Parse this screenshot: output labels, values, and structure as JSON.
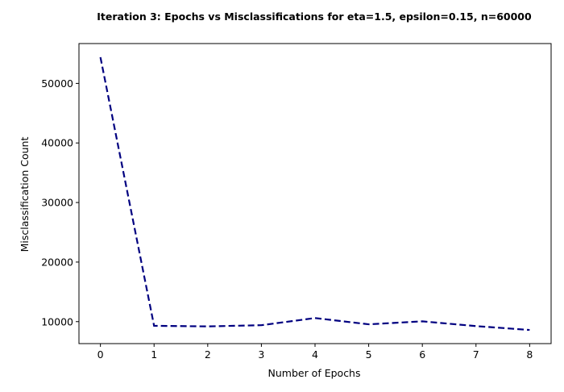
{
  "chart_data": {
    "type": "line",
    "title": "Iteration 3: Epochs vs Misclassifications for eta=1.5, epsilon=0.15, n=60000",
    "xlabel": "Number of Epochs",
    "ylabel": "Misclassification Count",
    "x": [
      0,
      1,
      2,
      3,
      4,
      5,
      6,
      7,
      8
    ],
    "series": [
      {
        "values": [
          54400,
          9300,
          9200,
          9400,
          10600,
          9550,
          10050,
          9250,
          8600
        ],
        "color": "#000080",
        "style": "dashed"
      }
    ],
    "xticks": [
      "0",
      "1",
      "2",
      "3",
      "4",
      "5",
      "6",
      "7",
      "8"
    ],
    "yticks": [
      "10000",
      "20000",
      "30000",
      "40000",
      "50000"
    ],
    "xlim": [
      -0.4,
      8.4
    ],
    "ylim": [
      6310,
      56690
    ],
    "grid": false,
    "legend": false
  }
}
